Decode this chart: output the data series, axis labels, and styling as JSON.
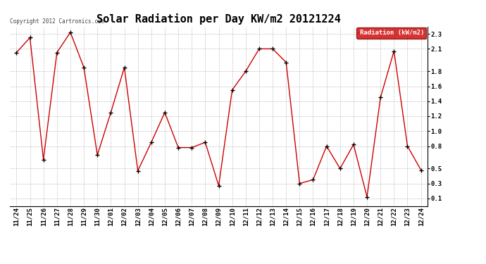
{
  "title": "Solar Radiation per Day KW/m2 20121224",
  "copyright_text": "Copyright 2012 Cartronics.com",
  "legend_label": "Radiation (kW/m2)",
  "dates": [
    "11/24",
    "11/25",
    "11/26",
    "11/27",
    "11/28",
    "11/29",
    "11/30",
    "12/01",
    "12/02",
    "12/03",
    "12/04",
    "12/05",
    "12/06",
    "12/07",
    "12/08",
    "12/09",
    "12/10",
    "12/11",
    "12/12",
    "12/13",
    "12/14",
    "12/15",
    "12/16",
    "12/17",
    "12/18",
    "12/19",
    "12/20",
    "12/21",
    "12/22",
    "12/23",
    "12/24"
  ],
  "values": [
    2.05,
    2.25,
    0.62,
    2.05,
    2.32,
    1.85,
    0.68,
    1.25,
    1.85,
    0.47,
    0.85,
    1.25,
    0.78,
    0.78,
    0.85,
    0.27,
    1.55,
    1.8,
    2.1,
    2.1,
    1.92,
    0.3,
    0.35,
    0.8,
    0.5,
    0.82,
    0.12,
    1.45,
    2.07,
    0.8,
    0.48
  ],
  "line_color": "#cc0000",
  "marker_color": "#000000",
  "bg_color": "#ffffff",
  "grid_color": "#aaaaaa",
  "ylim_min": 0.0,
  "ylim_max": 2.4,
  "yticks": [
    0.1,
    0.3,
    0.5,
    0.8,
    1.0,
    1.2,
    1.4,
    1.6,
    1.8,
    2.1,
    2.3
  ],
  "title_fontsize": 11,
  "tick_fontsize": 6.5,
  "legend_bg": "#cc0000",
  "legend_text_color": "#ffffff",
  "fig_width": 6.9,
  "fig_height": 3.75,
  "dpi": 100
}
